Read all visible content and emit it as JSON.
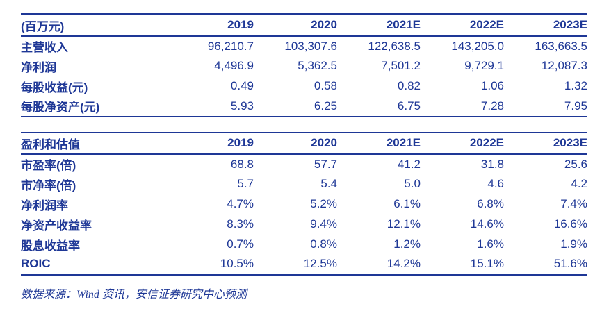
{
  "colors": {
    "navy": "#1e3796",
    "background": "#ffffff"
  },
  "table1": {
    "header": [
      "(百万元)",
      "2019",
      "2020",
      "2021E",
      "2022E",
      "2023E"
    ],
    "rows": [
      {
        "label": "主营收入",
        "values": [
          "96,210.7",
          "103,307.6",
          "122,638.5",
          "143,205.0",
          "163,663.5"
        ]
      },
      {
        "label": "净利润",
        "values": [
          "4,496.9",
          "5,362.5",
          "7,501.2",
          "9,729.1",
          "12,087.3"
        ]
      },
      {
        "label": "每股收益(元)",
        "values": [
          "0.49",
          "0.58",
          "0.82",
          "1.06",
          "1.32"
        ]
      },
      {
        "label": "每股净资产(元)",
        "values": [
          "5.93",
          "6.25",
          "6.75",
          "7.28",
          "7.95"
        ]
      }
    ]
  },
  "table2": {
    "header": [
      "盈利和估值",
      "2019",
      "2020",
      "2021E",
      "2022E",
      "2023E"
    ],
    "rows": [
      {
        "label": "市盈率(倍)",
        "values": [
          "68.8",
          "57.7",
          "41.2",
          "31.8",
          "25.6"
        ]
      },
      {
        "label": "市净率(倍)",
        "values": [
          "5.7",
          "5.4",
          "5.0",
          "4.6",
          "4.2"
        ]
      },
      {
        "label": "净利润率",
        "values": [
          "4.7%",
          "5.2%",
          "6.1%",
          "6.8%",
          "7.4%"
        ]
      },
      {
        "label": "净资产收益率",
        "values": [
          "8.3%",
          "9.4%",
          "12.1%",
          "14.6%",
          "16.6%"
        ]
      },
      {
        "label": "股息收益率",
        "values": [
          "0.7%",
          "0.8%",
          "1.2%",
          "1.6%",
          "1.9%"
        ]
      },
      {
        "label": "ROIC",
        "values": [
          "10.5%",
          "12.5%",
          "14.2%",
          "15.1%",
          "51.6%"
        ]
      }
    ]
  },
  "footer": {
    "source": "数据来源：Wind 资讯，安信证券研究中心预测"
  }
}
